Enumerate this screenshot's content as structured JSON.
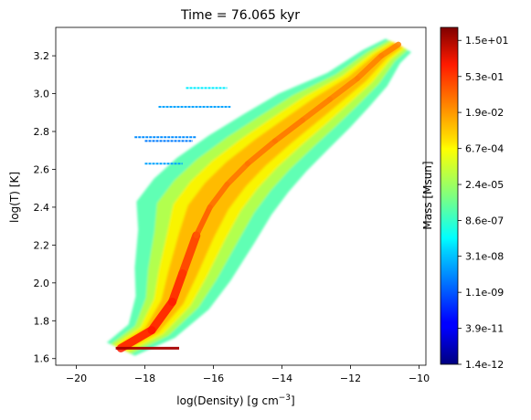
{
  "chart_data": {
    "type": "heatmap",
    "title": "Time = 76.065 kyr",
    "xlabel": "log(Density) [g cm",
    "xlabel_unit_exponent": "−3",
    "xlabel_close": "]",
    "ylabel": "log(T) [K]",
    "xlim": [
      -20.6,
      -9.8
    ],
    "ylim": [
      1.565,
      3.35
    ],
    "x_ticks": [
      -20,
      -18,
      -16,
      -14,
      -12,
      -10
    ],
    "x_tick_labels": [
      "−20",
      "−18",
      "−16",
      "−14",
      "−12",
      "−10"
    ],
    "y_ticks": [
      1.6,
      1.8,
      2.0,
      2.2,
      2.4,
      2.6,
      2.8,
      3.0,
      3.2
    ],
    "y_tick_labels": [
      "1.6",
      "1.8",
      "2.0",
      "2.2",
      "2.4",
      "2.6",
      "2.8",
      "3.0",
      "3.2"
    ],
    "grid": false,
    "colormap": "jet",
    "colorbar": {
      "label": "Mass [Msun]",
      "scale": "log",
      "range": [
        1.4e-12,
        50
      ],
      "ticks": [
        1.4e-12,
        3.9e-11,
        1.1e-09,
        3.1e-08,
        8.6e-07,
        2.4e-05,
        0.00067,
        0.019,
        0.53,
        15
      ],
      "tick_labels": [
        "1.4e-12",
        "3.9e-11",
        "1.1e-09",
        "3.1e-08",
        "8.6e-07",
        "2.4e-05",
        "6.7e-04",
        "1.9e-02",
        "5.3e-01",
        "1.5e+01"
      ]
    },
    "ridge": [
      {
        "x": -18.7,
        "y": 1.655,
        "mass": 0.53
      },
      {
        "x": -17.8,
        "y": 1.75,
        "mass": 0.53
      },
      {
        "x": -17.2,
        "y": 1.9,
        "mass": 0.53
      },
      {
        "x": -16.9,
        "y": 2.05,
        "mass": 0.35
      },
      {
        "x": -16.5,
        "y": 2.25,
        "mass": 0.1
      },
      {
        "x": -16.1,
        "y": 2.4,
        "mass": 0.05
      },
      {
        "x": -15.6,
        "y": 2.52,
        "mass": 0.03
      },
      {
        "x": -15.0,
        "y": 2.63,
        "mass": 0.03
      },
      {
        "x": -14.2,
        "y": 2.75,
        "mass": 0.03
      },
      {
        "x": -13.4,
        "y": 2.86,
        "mass": 0.03
      },
      {
        "x": -12.6,
        "y": 2.97,
        "mass": 0.02
      },
      {
        "x": -11.8,
        "y": 3.08,
        "mass": 0.02
      },
      {
        "x": -11.1,
        "y": 3.2,
        "mass": 0.02
      },
      {
        "x": -10.6,
        "y": 3.26,
        "mass": 0.02
      }
    ],
    "floor_row": {
      "y": 1.655,
      "x_start": -18.85,
      "x_end": -17.0,
      "mass": 15
    },
    "low_density_streaks": [
      {
        "y": 2.93,
        "x_start": -17.6,
        "x_end": -15.5,
        "mass": 1e-08
      },
      {
        "y": 2.77,
        "x_start": -18.3,
        "x_end": -16.5,
        "mass": 5e-09
      },
      {
        "y": 2.75,
        "x_start": -18.0,
        "x_end": -16.6,
        "mass": 3e-09
      },
      {
        "y": 2.63,
        "x_start": -18.0,
        "x_end": -16.9,
        "mass": 1e-08
      },
      {
        "y": 3.03,
        "x_start": -16.8,
        "x_end": -15.6,
        "mass": 1e-07
      }
    ]
  }
}
